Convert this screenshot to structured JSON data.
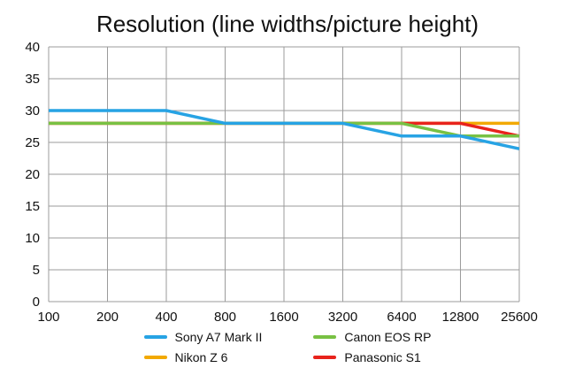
{
  "chart_data": {
    "type": "line",
    "title": "Resolution (line widths/picture height)",
    "x_labels": [
      "100",
      "200",
      "400",
      "800",
      "1600",
      "3200",
      "6400",
      "12800",
      "25600"
    ],
    "xlabel": "",
    "ylabel": "",
    "ylim": [
      0,
      40
    ],
    "y_tick_step": 5,
    "grid": true,
    "grid_color": "#9b9b9b",
    "legend_position": "bottom",
    "series": [
      {
        "name": "Nikon Z 6",
        "color": "#f2a900",
        "values": [
          28,
          28,
          28,
          28,
          28,
          28,
          28,
          28,
          28
        ]
      },
      {
        "name": "Panasonic S1",
        "color": "#e8231c",
        "values": [
          28,
          28,
          28,
          28,
          28,
          28,
          28,
          28,
          26
        ]
      },
      {
        "name": "Canon EOS RP",
        "color": "#78c143",
        "values": [
          28,
          28,
          28,
          28,
          28,
          28,
          28,
          26,
          26
        ]
      },
      {
        "name": "Sony A7 Mark II",
        "color": "#27a3e4",
        "values": [
          30,
          30,
          30,
          28,
          28,
          28,
          26,
          26,
          24
        ]
      }
    ],
    "legend_order": [
      "Sony A7 Mark II",
      "Canon EOS RP",
      "Nikon Z 6",
      "Panasonic S1"
    ]
  }
}
